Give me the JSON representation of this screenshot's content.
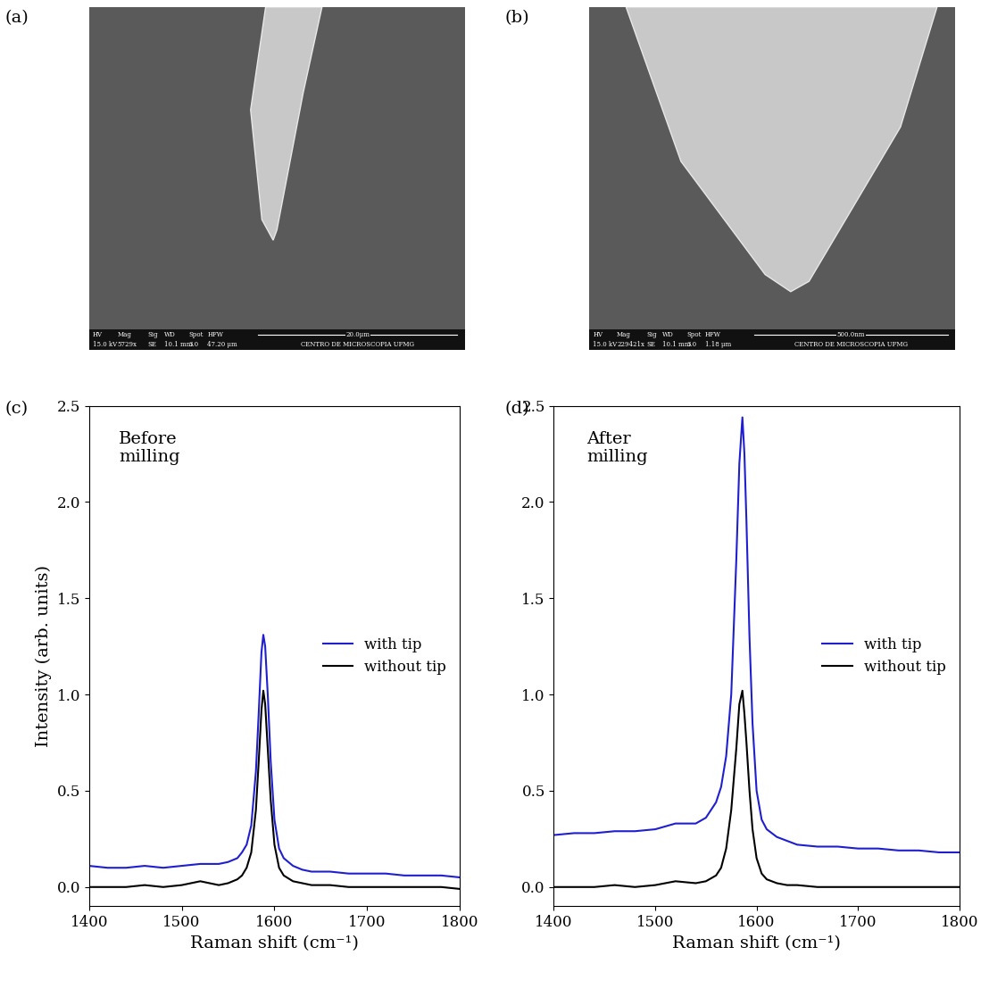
{
  "images": [
    {
      "label": "(a)",
      "info_header": [
        "HV",
        "Mag",
        "Sig",
        "WD",
        "Spot",
        "HFW"
      ],
      "info_values": [
        "15.0 kV",
        "5729x",
        "SE",
        "10.1 mm",
        "3.0",
        "47.20 μm"
      ],
      "scale_bar": "20.0μm",
      "facility": "CENTRO DE MICROSCOPIA UFMG"
    },
    {
      "label": "(b)",
      "info_header": [
        "HV",
        "Mag",
        "Sig",
        "WD",
        "Spot",
        "HFW"
      ],
      "info_values": [
        "15.0 kV",
        "229421x",
        "SE",
        "10.1 mm",
        "3.0",
        "1.18 μm"
      ],
      "scale_bar": "500.0nm",
      "facility": "CENTRO DE MICROSCOPIA UFMG"
    }
  ],
  "chart_data": [
    {
      "type": "line",
      "label": "(c)",
      "annotation": "Before\nmilling",
      "x_label": "Raman shift (cm⁻¹)",
      "y_label": "Intensity (arb. units)",
      "x": [
        1400,
        1420,
        1440,
        1460,
        1480,
        1500,
        1520,
        1540,
        1550,
        1560,
        1565,
        1570,
        1575,
        1580,
        1583,
        1586,
        1588,
        1590,
        1593,
        1596,
        1600,
        1605,
        1610,
        1620,
        1630,
        1640,
        1660,
        1680,
        1700,
        1720,
        1740,
        1760,
        1780,
        1800
      ],
      "series": [
        {
          "name": "with tip",
          "color": "#1f1fd0",
          "values": [
            0.11,
            0.1,
            0.1,
            0.11,
            0.1,
            0.11,
            0.12,
            0.12,
            0.13,
            0.15,
            0.18,
            0.22,
            0.32,
            0.6,
            0.9,
            1.22,
            1.31,
            1.25,
            0.98,
            0.65,
            0.35,
            0.2,
            0.15,
            0.11,
            0.09,
            0.08,
            0.08,
            0.07,
            0.07,
            0.07,
            0.06,
            0.06,
            0.06,
            0.05
          ]
        },
        {
          "name": "without tip",
          "color": "#000000",
          "values": [
            0,
            0,
            0,
            0.01,
            0,
            0.01,
            0.03,
            0.01,
            0.02,
            0.04,
            0.06,
            0.1,
            0.18,
            0.4,
            0.65,
            0.92,
            1.02,
            0.95,
            0.7,
            0.45,
            0.22,
            0.1,
            0.06,
            0.03,
            0.02,
            0.01,
            0.01,
            0,
            0,
            0,
            0,
            0,
            0,
            -0.01
          ]
        }
      ],
      "xlim": [
        1400,
        1800
      ],
      "xticks": [
        1400,
        1500,
        1600,
        1700,
        1800
      ],
      "ylim": [
        -0.1,
        2.5
      ],
      "yticks": [
        {
          "value": 0,
          "label": "0.0"
        },
        {
          "value": 0.5,
          "label": "0.5"
        },
        {
          "value": 1,
          "label": "1.0"
        },
        {
          "value": 1.5,
          "label": "1.5"
        },
        {
          "value": 2,
          "label": "2.0"
        },
        {
          "value": 2.5,
          "label": "2.5"
        }
      ],
      "legend": "center right"
    },
    {
      "type": "line",
      "label": "(d)",
      "annotation": "After\nmilling",
      "x_label": "Raman shift (cm⁻¹)",
      "x": [
        1400,
        1420,
        1440,
        1460,
        1480,
        1500,
        1520,
        1540,
        1550,
        1560,
        1565,
        1570,
        1575,
        1580,
        1583,
        1586,
        1588,
        1590,
        1593,
        1596,
        1600,
        1605,
        1610,
        1620,
        1630,
        1640,
        1660,
        1680,
        1700,
        1720,
        1740,
        1760,
        1780,
        1800
      ],
      "series": [
        {
          "name": "with tip",
          "color": "#1f1fd0",
          "values": [
            0.27,
            0.28,
            0.28,
            0.29,
            0.29,
            0.3,
            0.33,
            0.33,
            0.36,
            0.44,
            0.52,
            0.68,
            1.0,
            1.7,
            2.2,
            2.44,
            2.25,
            1.9,
            1.3,
            0.85,
            0.5,
            0.35,
            0.3,
            0.26,
            0.24,
            0.22,
            0.21,
            0.21,
            0.2,
            0.2,
            0.19,
            0.19,
            0.18,
            0.18
          ]
        },
        {
          "name": "without tip",
          "color": "#000000",
          "values": [
            0,
            0,
            0,
            0.01,
            0,
            0.01,
            0.03,
            0.02,
            0.03,
            0.06,
            0.1,
            0.2,
            0.4,
            0.72,
            0.95,
            1.02,
            0.9,
            0.75,
            0.5,
            0.3,
            0.15,
            0.07,
            0.04,
            0.02,
            0.01,
            0.01,
            0,
            0,
            0,
            0,
            0,
            0,
            0,
            0
          ]
        }
      ],
      "xlim": [
        1400,
        1800
      ],
      "xticks": [
        1400,
        1500,
        1600,
        1700,
        1800
      ],
      "ylim": [
        -0.1,
        2.5
      ],
      "yticks": [
        {
          "value": 0,
          "label": "0.0"
        },
        {
          "value": 0.5,
          "label": "0.5"
        },
        {
          "value": 1,
          "label": "1.0"
        },
        {
          "value": 1.5,
          "label": "1.5"
        },
        {
          "value": 2,
          "label": "2.0"
        },
        {
          "value": 2.5,
          "label": "2.5"
        }
      ],
      "legend": "center right"
    }
  ]
}
